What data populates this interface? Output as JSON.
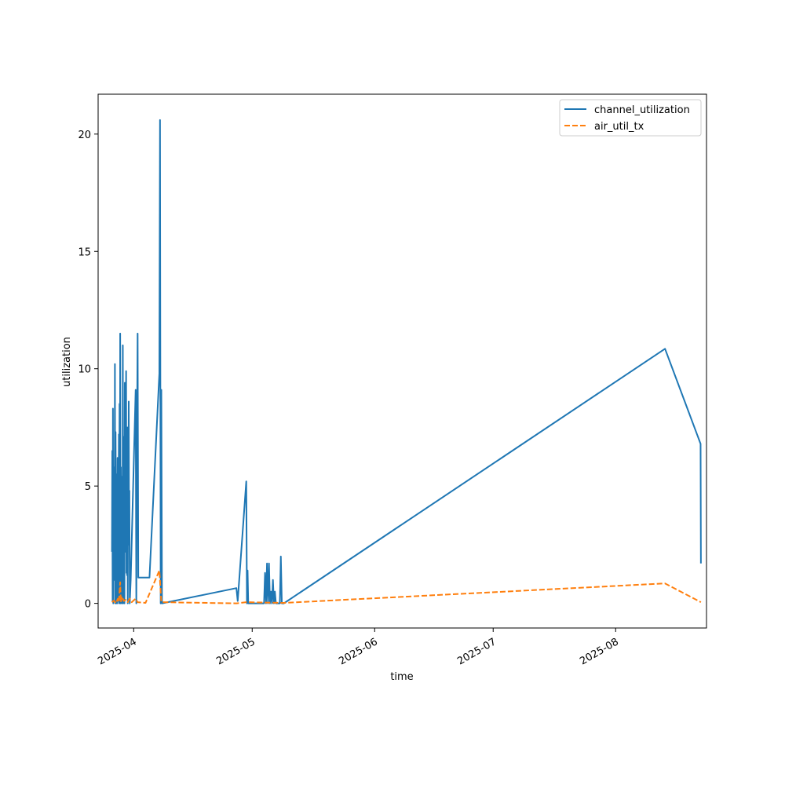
{
  "chart_data": {
    "type": "line",
    "title": "",
    "xlabel": "time",
    "ylabel": "utilization",
    "x_type": "date",
    "xlim": [
      "2025-03-23T00:00",
      "2025-08-24T00:00"
    ],
    "ylim": [
      -1.05,
      21.7
    ],
    "x_ticks": [
      "2025-04-01",
      "2025-05-01",
      "2025-06-01",
      "2025-07-01",
      "2025-08-01"
    ],
    "x_tick_labels": [
      "2025-04",
      "2025-05",
      "2025-06",
      "2025-07",
      "2025-08"
    ],
    "y_ticks": [
      0,
      5,
      10,
      15,
      20
    ],
    "y_tick_labels": [
      "0",
      "5",
      "10",
      "15",
      "20"
    ],
    "grid": false,
    "legend_position": "top-right",
    "series": [
      {
        "name": "channel_utilization",
        "color": "#1f77b4",
        "style": "solid",
        "points": [
          [
            "2025-03-26T12:00",
            2.2
          ],
          [
            "2025-03-26T14:00",
            6.5
          ],
          [
            "2025-03-26T16:00",
            0.1
          ],
          [
            "2025-03-26T18:00",
            8.3
          ],
          [
            "2025-03-26T20:00",
            0.0
          ],
          [
            "2025-03-26T22:00",
            5.7
          ],
          [
            "2025-03-27T00:00",
            2.5
          ],
          [
            "2025-03-27T02:00",
            5.8
          ],
          [
            "2025-03-27T04:00",
            1.0
          ],
          [
            "2025-03-27T06:00",
            10.2
          ],
          [
            "2025-03-27T08:00",
            0.0
          ],
          [
            "2025-03-27T10:00",
            7.3
          ],
          [
            "2025-03-27T12:00",
            4.3
          ],
          [
            "2025-03-27T14:00",
            0.0
          ],
          [
            "2025-03-27T16:00",
            5.5
          ],
          [
            "2025-03-27T18:00",
            3.0
          ],
          [
            "2025-03-27T20:00",
            0.0
          ],
          [
            "2025-03-27T22:00",
            6.2
          ],
          [
            "2025-03-28T00:00",
            0.1
          ],
          [
            "2025-03-28T02:00",
            5.6
          ],
          [
            "2025-03-28T04:00",
            3.0
          ],
          [
            "2025-03-28T06:00",
            7.2
          ],
          [
            "2025-03-28T08:00",
            0.0
          ],
          [
            "2025-03-28T10:00",
            8.5
          ],
          [
            "2025-03-28T12:00",
            0.3
          ],
          [
            "2025-03-28T14:00",
            11.5
          ],
          [
            "2025-03-28T16:00",
            0.0
          ],
          [
            "2025-03-28T18:00",
            5.8
          ],
          [
            "2025-03-28T20:00",
            2.5
          ],
          [
            "2025-03-28T22:00",
            5.4
          ],
          [
            "2025-03-29T00:00",
            0.0
          ],
          [
            "2025-03-29T02:00",
            3.9
          ],
          [
            "2025-03-29T04:00",
            1.5
          ],
          [
            "2025-03-29T06:00",
            11.0
          ],
          [
            "2025-03-29T08:00",
            0.0
          ],
          [
            "2025-03-29T10:00",
            5.5
          ],
          [
            "2025-03-29T12:00",
            2.5
          ],
          [
            "2025-03-29T14:00",
            7.1
          ],
          [
            "2025-03-29T16:00",
            0.0
          ],
          [
            "2025-03-29T18:00",
            9.4
          ],
          [
            "2025-03-29T20:00",
            3.0
          ],
          [
            "2025-03-29T22:00",
            6.0
          ],
          [
            "2025-03-30T00:00",
            2.2
          ],
          [
            "2025-03-30T02:00",
            9.9
          ],
          [
            "2025-03-30T04:00",
            1.3
          ],
          [
            "2025-03-30T06:00",
            6.0
          ],
          [
            "2025-03-30T08:00",
            1.2
          ],
          [
            "2025-03-30T10:00",
            7.5
          ],
          [
            "2025-03-30T12:00",
            0.0
          ],
          [
            "2025-03-30T14:00",
            6.4
          ],
          [
            "2025-03-30T16:00",
            3.5
          ],
          [
            "2025-03-30T18:00",
            8.6
          ],
          [
            "2025-03-30T20:00",
            2.5
          ],
          [
            "2025-03-30T22:00",
            4.8
          ],
          [
            "2025-03-31T00:00",
            0.0
          ],
          [
            "2025-03-31T06:00",
            1.0
          ],
          [
            "2025-04-01T12:00",
            9.1
          ],
          [
            "2025-04-01T16:00",
            0.0
          ],
          [
            "2025-04-01T20:00",
            7.1
          ],
          [
            "2025-04-02T00:00",
            11.5
          ],
          [
            "2025-04-02T04:00",
            1.1
          ],
          [
            "2025-04-05T00:00",
            1.1
          ],
          [
            "2025-04-07T12:00",
            9.8
          ],
          [
            "2025-04-07T16:00",
            20.6
          ],
          [
            "2025-04-07T20:00",
            0.0
          ],
          [
            "2025-04-08T00:00",
            9.1
          ],
          [
            "2025-04-08T04:00",
            0.0
          ],
          [
            "2025-04-27T00:00",
            0.65
          ],
          [
            "2025-04-27T08:00",
            0.1
          ],
          [
            "2025-04-29T12:00",
            5.2
          ],
          [
            "2025-04-29T16:00",
            0.0
          ],
          [
            "2025-04-29T20:00",
            1.4
          ],
          [
            "2025-04-30T00:00",
            0.0
          ],
          [
            "2025-05-04T00:00",
            0.0
          ],
          [
            "2025-05-04T06:00",
            1.3
          ],
          [
            "2025-05-04T12:00",
            0.0
          ],
          [
            "2025-05-04T18:00",
            1.7
          ],
          [
            "2025-05-05T00:00",
            0.0
          ],
          [
            "2025-05-05T06:00",
            1.7
          ],
          [
            "2025-05-05T12:00",
            0.0
          ],
          [
            "2025-05-05T18:00",
            0.5
          ],
          [
            "2025-05-06T00:00",
            0.0
          ],
          [
            "2025-05-06T06:00",
            1.0
          ],
          [
            "2025-05-06T12:00",
            0.0
          ],
          [
            "2025-05-06T18:00",
            0.5
          ],
          [
            "2025-05-07T00:00",
            0.0
          ],
          [
            "2025-05-08T00:00",
            0.0
          ],
          [
            "2025-05-08T06:00",
            2.0
          ],
          [
            "2025-05-08T12:00",
            0.0
          ],
          [
            "2025-05-09T00:00",
            0.0
          ],
          [
            "2025-08-13T12:00",
            10.85
          ],
          [
            "2025-08-22T12:00",
            6.8
          ],
          [
            "2025-08-22T14:00",
            1.7
          ]
        ]
      },
      {
        "name": "air_util_tx",
        "color": "#ff7f0e",
        "style": "dashed",
        "points": [
          [
            "2025-03-26T12:00",
            0.05
          ],
          [
            "2025-03-27T00:00",
            0.12
          ],
          [
            "2025-03-27T12:00",
            0.0
          ],
          [
            "2025-03-28T00:00",
            0.2
          ],
          [
            "2025-03-28T06:00",
            0.05
          ],
          [
            "2025-03-28T14:00",
            0.9
          ],
          [
            "2025-03-28T18:00",
            0.05
          ],
          [
            "2025-03-29T00:00",
            0.3
          ],
          [
            "2025-03-29T12:00",
            0.1
          ],
          [
            "2025-03-30T00:00",
            0.15
          ],
          [
            "2025-03-30T12:00",
            0.05
          ],
          [
            "2025-03-31T00:00",
            0.2
          ],
          [
            "2025-03-31T12:00",
            0.05
          ],
          [
            "2025-04-01T12:00",
            0.2
          ],
          [
            "2025-04-02T00:00",
            0.05
          ],
          [
            "2025-04-04T00:00",
            0.02
          ],
          [
            "2025-04-07T12:00",
            1.4
          ],
          [
            "2025-04-08T00:00",
            0.05
          ],
          [
            "2025-04-27T00:00",
            0.0
          ],
          [
            "2025-04-29T12:00",
            0.05
          ],
          [
            "2025-05-09T00:00",
            0.02
          ],
          [
            "2025-08-13T12:00",
            0.85
          ],
          [
            "2025-08-22T14:00",
            0.05
          ]
        ]
      }
    ]
  }
}
